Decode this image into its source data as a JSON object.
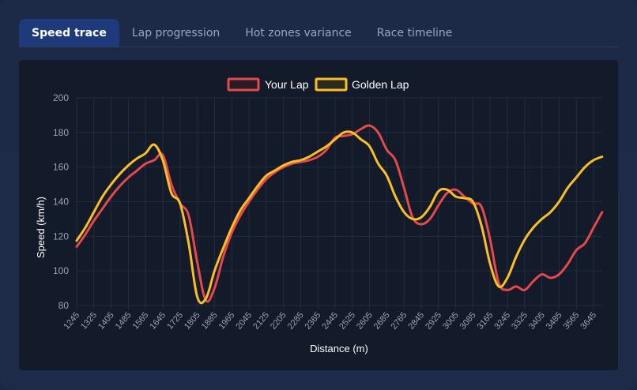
{
  "tabs": [
    {
      "label": "Speed trace",
      "active": true
    },
    {
      "label": "Lap progression",
      "active": false
    },
    {
      "label": "Hot zones variance",
      "active": false
    },
    {
      "label": "Race timeline",
      "active": false
    }
  ],
  "colors": {
    "your_lap": "#e5484d",
    "golden_lap": "#fbbf24",
    "panel_bg": "#131a2a",
    "grid": "#232c3f",
    "tick_text": "#9aa3b5",
    "axis_title": "#ffffff"
  },
  "chart_data": {
    "type": "line",
    "title": "",
    "xlabel": "Distance (m)",
    "ylabel": "Speed (km/h)",
    "ylim": [
      80,
      200
    ],
    "yticks": [
      80,
      100,
      120,
      140,
      160,
      180,
      200
    ],
    "xtick_labels": [
      "1245",
      "1325",
      "1405",
      "1485",
      "1565",
      "1645",
      "1725",
      "1805",
      "1885",
      "1965",
      "2045",
      "2125",
      "2205",
      "2285",
      "2365",
      "2445",
      "2525",
      "2605",
      "2685",
      "2765",
      "2845",
      "2925",
      "3005",
      "3085",
      "3165",
      "3245",
      "3325",
      "3405",
      "3485",
      "3565",
      "3645"
    ],
    "grid": true,
    "legend_position": "top",
    "x": [
      1245,
      1285,
      1325,
      1365,
      1405,
      1445,
      1485,
      1525,
      1565,
      1605,
      1645,
      1685,
      1725,
      1765,
      1805,
      1845,
      1885,
      1925,
      1965,
      2005,
      2045,
      2085,
      2125,
      2165,
      2205,
      2245,
      2285,
      2325,
      2365,
      2405,
      2445,
      2485,
      2525,
      2565,
      2605,
      2645,
      2685,
      2725,
      2765,
      2805,
      2845,
      2885,
      2925,
      2965,
      3005,
      3045,
      3085,
      3125,
      3165,
      3205,
      3245,
      3285,
      3325,
      3365,
      3405,
      3445,
      3485,
      3525,
      3565,
      3605,
      3645,
      3685
    ],
    "series": [
      {
        "name": "Your Lap",
        "color": "#e5484d",
        "values": [
          114,
          121,
          129,
          136,
          143,
          149,
          154,
          158,
          162,
          164,
          167,
          150,
          139,
          132,
          105,
          83,
          90,
          108,
          122,
          132,
          140,
          147,
          153,
          157,
          160,
          162,
          163,
          164,
          166,
          170,
          177,
          178,
          179,
          182,
          184,
          180,
          170,
          164,
          148,
          131,
          127,
          130,
          138,
          145,
          147,
          143,
          139,
          137,
          118,
          93,
          89,
          91,
          89,
          94,
          98,
          96,
          98,
          104,
          112,
          116,
          125,
          134
        ]
      },
      {
        "name": "Golden Lap",
        "color": "#fbbf24",
        "values": [
          117.5,
          125,
          134,
          143,
          150,
          156,
          161,
          165,
          168,
          173,
          164,
          145,
          139,
          116,
          85,
          84,
          100,
          113,
          125,
          135,
          142,
          149,
          155,
          158,
          161,
          163,
          164,
          166,
          169,
          172,
          176,
          180,
          180,
          176,
          172,
          162,
          155,
          143,
          134,
          130,
          131,
          137,
          146,
          147,
          143,
          142,
          140,
          126,
          104,
          91,
          96,
          108,
          118,
          125,
          130,
          134,
          140,
          148,
          154,
          160,
          164,
          166
        ]
      }
    ]
  }
}
